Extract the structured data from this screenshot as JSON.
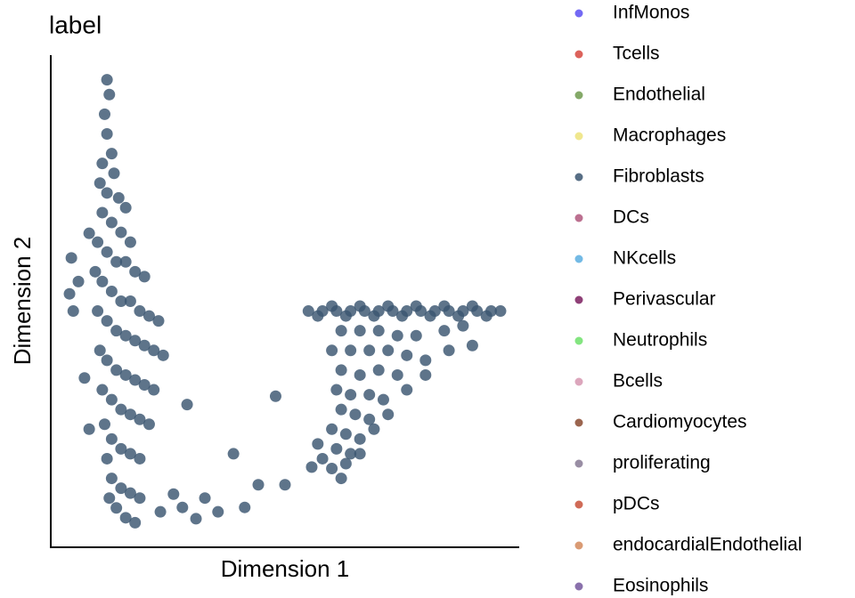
{
  "chart_data": {
    "type": "scatter",
    "title": "label",
    "xlabel": "Dimension 1",
    "ylabel": "Dimension 2",
    "xlim": [
      0,
      100
    ],
    "ylim": [
      0,
      100
    ],
    "series": [
      {
        "name": "InfMonos",
        "color": "#5a4ff2",
        "x": [],
        "y": []
      },
      {
        "name": "Tcells",
        "color": "#d6463e",
        "x": [],
        "y": []
      },
      {
        "name": "Endothelial",
        "color": "#6f9a4e",
        "x": [],
        "y": []
      },
      {
        "name": "Macrophages",
        "color": "#ede37a",
        "x": [],
        "y": []
      },
      {
        "name": "Fibroblasts",
        "color": "#3a5570",
        "x": [
          12,
          12.5,
          11.5,
          12,
          13,
          11,
          13.5,
          10.5,
          12,
          14.5,
          16,
          11,
          13,
          15,
          17,
          10,
          12,
          14,
          16,
          18,
          20,
          9.5,
          11,
          13,
          15,
          17,
          19,
          21,
          23,
          10,
          12,
          14,
          16,
          18,
          20,
          22,
          24,
          10.5,
          12,
          14,
          16,
          18,
          20,
          22,
          11,
          13,
          15,
          17,
          19,
          21,
          11.5,
          13,
          15,
          17,
          19,
          12,
          13,
          15,
          17,
          19,
          12.5,
          14,
          16,
          18,
          4.4,
          8.2,
          4,
          4.8,
          7.2,
          8.2,
          5.9,
          29.1,
          39,
          48,
          44.3,
          50,
          55.7,
          32.9,
          28.1,
          35.7,
          23.4,
          31,
          41.4,
          26.2,
          55,
          58,
          61,
          64,
          67,
          70,
          73,
          76,
          79,
          82,
          85,
          88,
          91,
          94,
          96,
          57,
          63,
          69,
          75,
          81,
          87,
          93,
          60,
          66,
          72,
          78,
          84,
          90,
          62,
          66,
          70,
          74,
          78,
          84,
          88,
          60,
          64,
          68,
          72,
          76,
          80,
          62,
          66,
          70,
          74,
          61,
          64,
          68,
          71,
          62,
          65,
          68,
          60,
          63,
          66,
          61,
          64,
          60,
          62,
          58,
          57,
          80,
          76,
          72,
          69,
          66,
          63,
          85,
          90
        ],
        "y": [
          95,
          92,
          88,
          84,
          80,
          78,
          76,
          74,
          72,
          71,
          69,
          68,
          66,
          64,
          62,
          62,
          60,
          58,
          58,
          56,
          55,
          56,
          54,
          52,
          50,
          50,
          48,
          47,
          46,
          48,
          46,
          44,
          43,
          42,
          41,
          40,
          39,
          40,
          38,
          36,
          35,
          34,
          33,
          32,
          32,
          30,
          28,
          27,
          26,
          25,
          25,
          22,
          20,
          19,
          18,
          18,
          14,
          12,
          11,
          10,
          10,
          8,
          6,
          5,
          58.8,
          63.8,
          51.5,
          48,
          34.4,
          24,
          54,
          29,
          19,
          30.7,
          12.7,
          12.7,
          16.3,
          10,
          8.1,
          7.2,
          7.2,
          5.8,
          8.1,
          10.8,
          48,
          48,
          48,
          48,
          48,
          48,
          48,
          48,
          48,
          48,
          48,
          48,
          48,
          48,
          48,
          47,
          47,
          47,
          47,
          47,
          47,
          47,
          49,
          49,
          49,
          49,
          49,
          49,
          44,
          44,
          44,
          43,
          43,
          44,
          45,
          40,
          40,
          40,
          40,
          39,
          38,
          36,
          35,
          36,
          35,
          32,
          31,
          31,
          30,
          28,
          27,
          26,
          24,
          23,
          22,
          20,
          19,
          16,
          14,
          18,
          21,
          35,
          32,
          27,
          24,
          19,
          17,
          40,
          41
        ]
      },
      {
        "name": "DCs",
        "color": "#b0577d",
        "x": [],
        "y": []
      },
      {
        "name": "NKcells",
        "color": "#5aaee0",
        "x": [],
        "y": []
      },
      {
        "name": "Perivascular",
        "color": "#7b1f5f",
        "x": [],
        "y": []
      },
      {
        "name": "Neutrophils",
        "color": "#6de06a",
        "x": [],
        "y": []
      },
      {
        "name": "Bcells",
        "color": "#d696b0",
        "x": [],
        "y": []
      },
      {
        "name": "Cardiomyocytes",
        "color": "#8a4a30",
        "x": [],
        "y": []
      },
      {
        "name": "proliferating",
        "color": "#877a94",
        "x": [],
        "y": []
      },
      {
        "name": "pDCs",
        "color": "#c8513a",
        "x": [],
        "y": []
      },
      {
        "name": "endocardialEndothelial",
        "color": "#d48a5c",
        "x": [],
        "y": []
      },
      {
        "name": "Eosinophils",
        "color": "#76589e",
        "x": [],
        "y": []
      }
    ]
  }
}
